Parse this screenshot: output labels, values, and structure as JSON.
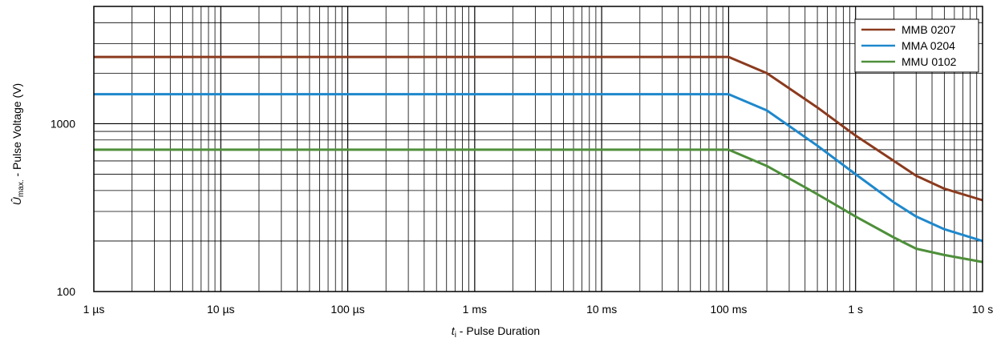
{
  "chart_data": {
    "type": "line",
    "xscale": "log",
    "yscale": "log",
    "xlim_seconds": [
      1e-06,
      10
    ],
    "ylim": [
      100,
      5000
    ],
    "grid": true,
    "legend_position": "top-right",
    "x_ticks": [
      {
        "value": 1e-06,
        "label": "1 µs"
      },
      {
        "value": 1e-05,
        "label": "10 µs"
      },
      {
        "value": 0.0001,
        "label": "100 µs"
      },
      {
        "value": 0.001,
        "label": "1 ms"
      },
      {
        "value": 0.01,
        "label": "10 ms"
      },
      {
        "value": 0.1,
        "label": "100 ms"
      },
      {
        "value": 1,
        "label": "1 s"
      },
      {
        "value": 10,
        "label": "10 s"
      }
    ],
    "y_ticks": [
      {
        "value": 100,
        "label": "100"
      },
      {
        "value": 1000,
        "label": "1000"
      }
    ],
    "xlabel": {
      "main": "t",
      "sub": "i",
      "rest": " - Pulse Duration"
    },
    "ylabel": {
      "main": "Û",
      "sub": "max.",
      "rest": " - Pulse Voltage (V)"
    },
    "series": [
      {
        "name": "MMB 0207",
        "color": "#8B3A1E",
        "points": [
          [
            1e-06,
            2500
          ],
          [
            0.1,
            2500
          ],
          [
            0.2,
            2000
          ],
          [
            0.5,
            1250
          ],
          [
            1,
            850
          ],
          [
            2,
            600
          ],
          [
            3,
            490
          ],
          [
            5,
            410
          ],
          [
            10,
            350
          ]
        ]
      },
      {
        "name": "MMA 0204",
        "color": "#1F88CC",
        "points": [
          [
            1e-06,
            1500
          ],
          [
            0.1,
            1500
          ],
          [
            0.2,
            1200
          ],
          [
            0.5,
            740
          ],
          [
            1,
            500
          ],
          [
            2,
            340
          ],
          [
            3,
            280
          ],
          [
            5,
            235
          ],
          [
            10,
            200
          ]
        ]
      },
      {
        "name": "MMU 0102",
        "color": "#4E8F3A",
        "points": [
          [
            1e-06,
            700
          ],
          [
            0.1,
            700
          ],
          [
            0.2,
            560
          ],
          [
            0.5,
            380
          ],
          [
            1,
            280
          ],
          [
            2,
            210
          ],
          [
            3,
            180
          ],
          [
            5,
            165
          ],
          [
            10,
            150
          ]
        ]
      }
    ]
  }
}
